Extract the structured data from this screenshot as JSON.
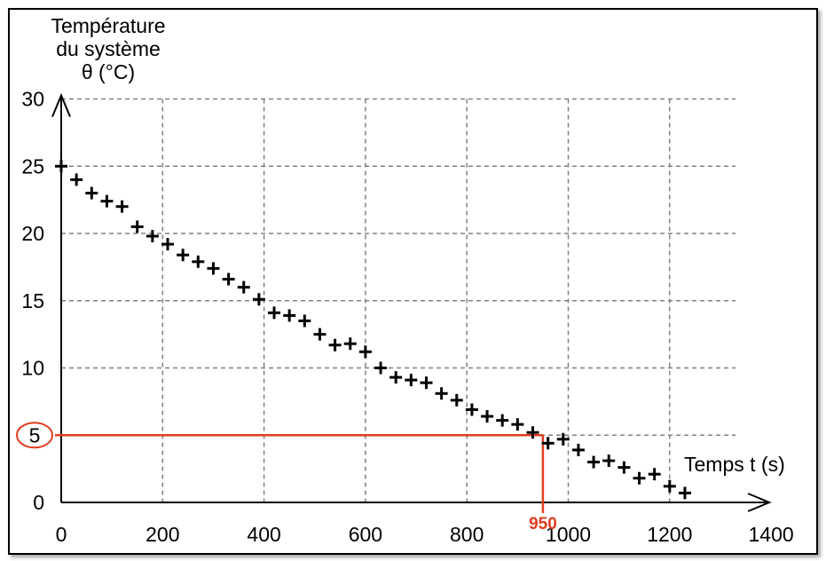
{
  "chart_data": {
    "type": "scatter",
    "ylabel_lines": [
      "Température",
      "du système",
      "θ (°C)"
    ],
    "xlabel": "Temps t (s)",
    "xlim": [
      0,
      1400
    ],
    "ylim": [
      0,
      30
    ],
    "xticks": [
      0,
      200,
      400,
      600,
      800,
      1000,
      1200,
      1400
    ],
    "yticks": [
      0,
      5,
      10,
      15,
      20,
      25,
      30
    ],
    "grid": true,
    "marker": "+",
    "x": [
      0,
      30,
      60,
      90,
      120,
      150,
      180,
      210,
      240,
      270,
      300,
      330,
      360,
      390,
      420,
      450,
      480,
      510,
      540,
      570,
      600,
      630,
      660,
      690,
      720,
      750,
      780,
      810,
      840,
      870,
      900,
      930,
      960,
      990,
      1020,
      1050,
      1080,
      1110,
      1140,
      1170,
      1200,
      1230
    ],
    "y": [
      25,
      24,
      23,
      22.4,
      22,
      20.5,
      19.8,
      19.2,
      18.4,
      17.9,
      17.4,
      16.6,
      16,
      15.1,
      14.1,
      13.9,
      13.5,
      12.5,
      11.7,
      11.8,
      11.2,
      10,
      9.3,
      9.1,
      8.9,
      8.1,
      7.6,
      6.9,
      6.4,
      6.1,
      5.8,
      5.2,
      4.4,
      4.7,
      3.9,
      3,
      3.1,
      2.6,
      1.8,
      2.1,
      1.2,
      0.7
    ],
    "annotation": {
      "y_value": 5,
      "x_value": 950,
      "x_label": "950",
      "y_label": "5",
      "color": "#e03c1e"
    },
    "colors": {
      "grid": "#808080",
      "marker": "#000000",
      "axis": "#000000"
    }
  }
}
